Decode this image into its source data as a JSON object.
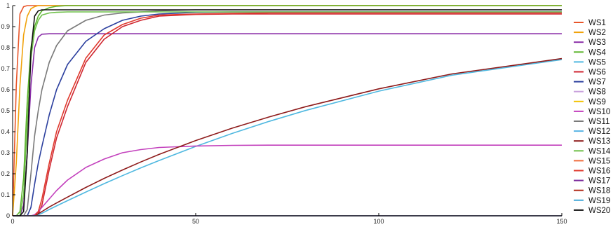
{
  "chart_data": {
    "type": "line",
    "title": "",
    "xlabel": "",
    "ylabel": "",
    "xlim": [
      0,
      150
    ],
    "ylim": [
      0,
      1
    ],
    "x_ticks": [
      0,
      50,
      100,
      150
    ],
    "y_ticks": [
      0,
      0.1,
      0.2,
      0.3,
      0.4,
      0.5,
      0.6,
      0.7,
      0.8,
      0.9,
      1
    ],
    "grid": false,
    "legend_position": "right",
    "x": [
      0,
      1,
      2,
      3,
      4,
      5,
      6,
      7,
      8,
      10,
      12,
      15,
      20,
      25,
      30,
      35,
      40,
      50,
      60,
      70,
      80,
      100,
      120,
      150
    ],
    "series": [
      {
        "name": "WS1",
        "color": "#e8562a",
        "values": [
          0,
          0.62,
          0.96,
          0.995,
          1,
          1,
          1,
          1,
          1,
          1,
          1,
          1,
          1,
          1,
          1,
          1,
          1,
          1,
          1,
          1,
          1,
          1,
          1,
          1
        ]
      },
      {
        "name": "WS2",
        "color": "#f0a20a",
        "values": [
          0,
          0.25,
          0.62,
          0.86,
          0.95,
          0.985,
          0.995,
          1,
          1,
          1,
          1,
          1,
          1,
          1,
          1,
          1,
          1,
          1,
          1,
          1,
          1,
          1,
          1,
          1
        ]
      },
      {
        "name": "WS3",
        "color": "#8a2ea8",
        "values": [
          0,
          0,
          0,
          0.05,
          0.3,
          0.62,
          0.8,
          0.85,
          0.864,
          0.866,
          0.866,
          0.866,
          0.866,
          0.866,
          0.866,
          0.866,
          0.866,
          0.866,
          0.866,
          0.866,
          0.866,
          0.866,
          0.866,
          0.866
        ]
      },
      {
        "name": "WS4",
        "color": "#5db52e",
        "values": [
          0,
          0,
          0.02,
          0.18,
          0.55,
          0.8,
          0.9,
          0.95,
          0.975,
          0.99,
          0.997,
          1,
          1,
          1,
          1,
          1,
          1,
          1,
          1,
          1,
          1,
          1,
          1,
          1
        ]
      },
      {
        "name": "WS5",
        "color": "#4fb8e0",
        "values": [
          0,
          0,
          0,
          0,
          0,
          0,
          0,
          0.005,
          0.012,
          0.03,
          0.047,
          0.072,
          0.113,
          0.153,
          0.191,
          0.228,
          0.263,
          0.33,
          0.392,
          0.449,
          0.501,
          0.593,
          0.669,
          0.743
        ]
      },
      {
        "name": "WS6",
        "color": "#cf2630",
        "values": [
          0,
          0,
          0,
          0,
          0,
          0,
          0,
          0.01,
          0.05,
          0.22,
          0.37,
          0.52,
          0.73,
          0.84,
          0.9,
          0.93,
          0.95,
          0.958,
          0.96,
          0.96,
          0.96,
          0.96,
          0.96,
          0.96
        ]
      },
      {
        "name": "WS7",
        "color": "#2b3f9e",
        "values": [
          0,
          0,
          0,
          0,
          0,
          0.04,
          0.15,
          0.25,
          0.33,
          0.48,
          0.6,
          0.72,
          0.83,
          0.89,
          0.93,
          0.95,
          0.96,
          0.968,
          0.97,
          0.97,
          0.97,
          0.97,
          0.97,
          0.97
        ]
      },
      {
        "name": "WS8",
        "color": "#c7a0dc",
        "values": [
          0,
          0,
          0,
          0,
          0,
          0,
          0,
          0,
          0,
          0,
          0,
          0,
          0,
          0,
          0,
          0,
          0,
          0,
          0,
          0,
          0,
          0,
          0,
          0
        ]
      },
      {
        "name": "WS9",
        "color": "#f2c200",
        "values": [
          0,
          0,
          0,
          0,
          0,
          0,
          0,
          0,
          0,
          0,
          0,
          0,
          0,
          0,
          0,
          0,
          0,
          0,
          0,
          0,
          0,
          0,
          0,
          0
        ]
      },
      {
        "name": "WS10",
        "color": "#c341bd",
        "values": [
          0,
          0,
          0,
          0,
          0,
          0,
          0.005,
          0.02,
          0.04,
          0.08,
          0.12,
          0.17,
          0.23,
          0.27,
          0.3,
          0.315,
          0.325,
          0.332,
          0.335,
          0.336,
          0.336,
          0.336,
          0.336,
          0.336
        ]
      },
      {
        "name": "WS11",
        "color": "#7a7a7a",
        "values": [
          0,
          0,
          0,
          0,
          0.03,
          0.2,
          0.38,
          0.5,
          0.6,
          0.73,
          0.81,
          0.88,
          0.93,
          0.955,
          0.965,
          0.97,
          0.975,
          0.98,
          0.98,
          0.98,
          0.98,
          0.98,
          0.98,
          0.98
        ]
      },
      {
        "name": "WS12",
        "color": "#5ab4e5",
        "values": [
          0,
          0,
          0,
          0,
          0,
          0,
          0,
          0,
          0,
          0,
          0,
          0,
          0,
          0,
          0,
          0,
          0,
          0,
          0,
          0,
          0,
          0,
          0,
          0
        ]
      },
      {
        "name": "WS13",
        "color": "#8e1b1b",
        "values": [
          0,
          0,
          0,
          0,
          0,
          0,
          0,
          0.01,
          0.02,
          0.042,
          0.061,
          0.089,
          0.135,
          0.178,
          0.218,
          0.256,
          0.292,
          0.358,
          0.417,
          0.47,
          0.519,
          0.604,
          0.675,
          0.748
        ]
      },
      {
        "name": "WS14",
        "color": "#6fc04a",
        "values": [
          0,
          0,
          0,
          0.1,
          0.45,
          0.75,
          0.88,
          0.93,
          0.955,
          0.965,
          0.968,
          0.97,
          0.97,
          0.97,
          0.97,
          0.97,
          0.97,
          0.97,
          0.97,
          0.97,
          0.97,
          0.97,
          0.97,
          0.97
        ]
      },
      {
        "name": "WS15",
        "color": "#f06a3b",
        "values": [
          0,
          0,
          0,
          0,
          0,
          0,
          0,
          0,
          0,
          0,
          0,
          0,
          0,
          0,
          0,
          0,
          0,
          0,
          0,
          0,
          0,
          0,
          0,
          0
        ]
      },
      {
        "name": "WS16",
        "color": "#e03a2e",
        "values": [
          0,
          0,
          0,
          0,
          0,
          0,
          0,
          0.02,
          0.08,
          0.25,
          0.4,
          0.55,
          0.75,
          0.86,
          0.91,
          0.94,
          0.955,
          0.96,
          0.963,
          0.965,
          0.965,
          0.965,
          0.965,
          0.965
        ]
      },
      {
        "name": "WS17",
        "color": "#7b2a9c",
        "values": [
          0,
          0,
          0,
          0,
          0,
          0,
          0,
          0,
          0,
          0,
          0,
          0,
          0,
          0,
          0,
          0,
          0,
          0,
          0,
          0,
          0,
          0,
          0,
          0
        ]
      },
      {
        "name": "WS18",
        "color": "#b12a1a",
        "values": [
          0,
          0,
          0,
          0,
          0,
          0,
          0,
          0,
          0,
          0,
          0,
          0,
          0,
          0,
          0,
          0,
          0,
          0,
          0,
          0,
          0,
          0,
          0,
          0
        ]
      },
      {
        "name": "WS19",
        "color": "#46a8d8",
        "values": [
          0,
          0,
          0,
          0,
          0,
          0,
          0,
          0,
          0,
          0,
          0,
          0,
          0,
          0,
          0,
          0,
          0,
          0,
          0,
          0,
          0,
          0,
          0,
          0
        ]
      },
      {
        "name": "WS20",
        "color": "#111111",
        "values": [
          0,
          0,
          0,
          0.02,
          0.3,
          0.78,
          0.95,
          0.975,
          0.98,
          0.98,
          0.98,
          0.98,
          0.98,
          0.98,
          0.98,
          0.98,
          0.98,
          0.98,
          0.98,
          0.98,
          0.98,
          0.98,
          0.98,
          0.98
        ]
      }
    ]
  }
}
